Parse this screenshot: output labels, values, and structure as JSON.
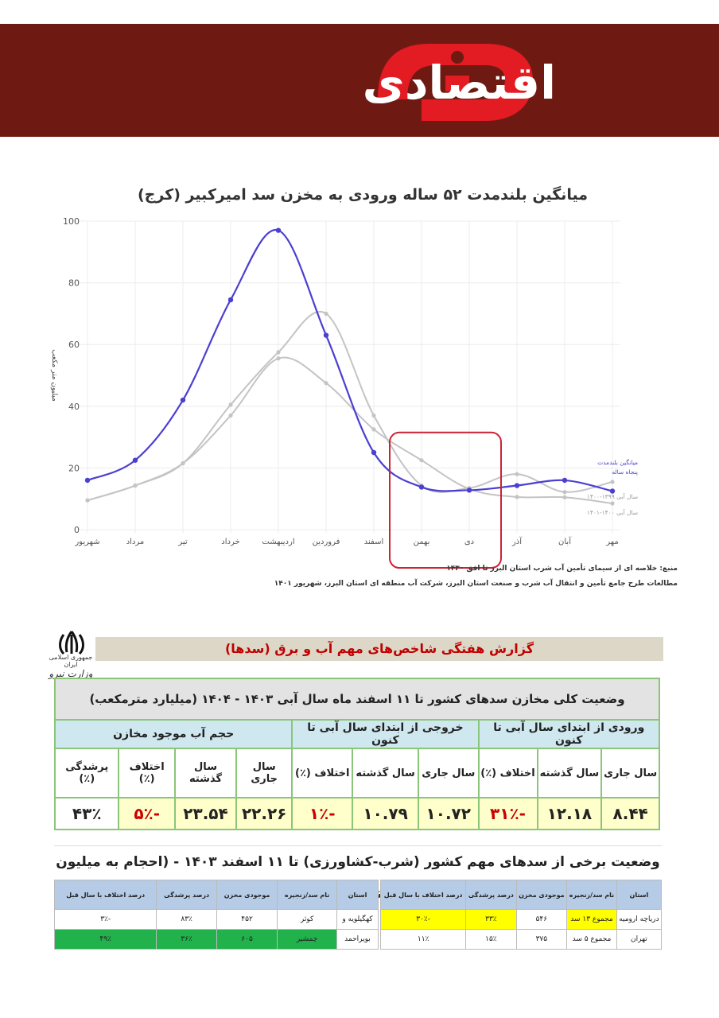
{
  "logo": {
    "text": "اقتصادی",
    "brand_color": "#e31b23",
    "banner_color": "#6e1a12"
  },
  "chart_data": {
    "type": "line",
    "title": "میانگین بلندمدت ۵۲ ساله ورودی به مخزن سد امیرکبیر (کرج)",
    "ylabel": "میلیون متر مکعب",
    "ylim": [
      0,
      100
    ],
    "yticks": [
      0,
      20,
      40,
      60,
      80,
      100
    ],
    "grid": true,
    "categories": [
      "مهر",
      "آبان",
      "آذر",
      "دی",
      "بهمن",
      "اسفند",
      "فروردین",
      "اردیبهشت",
      "خرداد",
      "تیر",
      "مرداد",
      "شهریور"
    ],
    "series": [
      {
        "name": "میانگین بلندمدت پنجاه ساله",
        "color": "#4b3fd1",
        "values": [
          12.5,
          16,
          14.3,
          12.8,
          13.8,
          25,
          63,
          97,
          74.5,
          42,
          22.5,
          16
        ]
      },
      {
        "name": "سال آبی ۱۳۹۹-۱۴۰۰",
        "color": "#c4c4c4",
        "values": [
          15.5,
          12.2,
          18,
          13.5,
          14.3,
          37,
          70,
          57.5,
          40.5,
          21.5,
          14.3,
          9.5
        ]
      },
      {
        "name": "سال آبی ۱۴۰۰-۱۴۰۱",
        "color": "#c4c4c4",
        "values": [
          8.5,
          10.5,
          10.6,
          13.2,
          22.5,
          32.5,
          47.5,
          55.5,
          37,
          21.5,
          14.3,
          9.5
        ]
      }
    ],
    "highlight_months": [
      "دی",
      "بهمن"
    ],
    "highlight_color": "#cc2233",
    "legend_placement": "right"
  },
  "sources": [
    "منبع: خلاصه ای از سیمای تأمین آب شرب استان البرز تا افق ۱۴۳۰",
    "مطالعات طرح جامع تأمین و انتقال آب شرب و صنعت استان البرز، شرکت آب منطقه ای استان البرز، شهریور ۱۴۰۱"
  ],
  "report": {
    "emblem_text": "جمهوری اسلامی ایران",
    "ministry": "وزارت نیرو",
    "title": "گزارش هفتگی شاخص‌های مهم آب و برق (سدها)",
    "table1": {
      "caption": "وضعیت کلی مخازن سدهای کشور تا ۱۱ اسفند ماه سال آبی ۱۴۰۳ - ۱۴۰۴ (میلیارد مترمکعب)",
      "groups": [
        "ورودی از ابتدای سال آبی تا کنون",
        "خروجی از ابتدای سال آبی تا کنون",
        "حجم آب موجود مخازن"
      ],
      "columns": [
        "سال جاری",
        "سال گذشته",
        "اختلاف (٪)",
        "سال جاری",
        "سال گذشته",
        "اختلاف (٪)",
        "سال جاری",
        "سال گذشته",
        "اختلاف (٪)",
        "پرشدگی (٪)"
      ],
      "values": [
        "۸.۴۴",
        "۱۲.۱۸",
        "-۳۱٪",
        "۱۰.۷۲",
        "۱۰.۷۹",
        "-۱٪",
        "۲۲.۲۶",
        "۲۳.۵۴",
        "-۵٪",
        "۴۳٪"
      ]
    },
    "table2": {
      "caption": "وضعیت برخی از سدهای مهم کشور (شرب-کشاورزی) تا ۱۱ اسفند ۱۴۰۳ - (احجام به میلیون مترمکعب)",
      "headers": [
        "استان",
        "نام سد/زنجیره",
        "موجودی مخزن",
        "درصد پرشدگی",
        "درصد اختلاف با سال قبل"
      ],
      "right_rows": [
        [
          "دریاچه ارومیه",
          "مجموع ۱۳ سد",
          "۵۴۶",
          "۳۳٪",
          "-۳۰٪"
        ],
        [
          "تهران",
          "مجموع ۵ سد",
          "۳۷۵",
          "۱۵٪",
          "۱۱٪"
        ]
      ],
      "left_rows": [
        [
          "کهگیلویه و",
          "کوثر",
          "۴۵۲",
          "۸۳٪",
          "-۳٪"
        ],
        [
          "بویراحمد",
          "چمشیر",
          "۶۰۵",
          "۳۶٪",
          "۴۹٪"
        ]
      ]
    }
  }
}
